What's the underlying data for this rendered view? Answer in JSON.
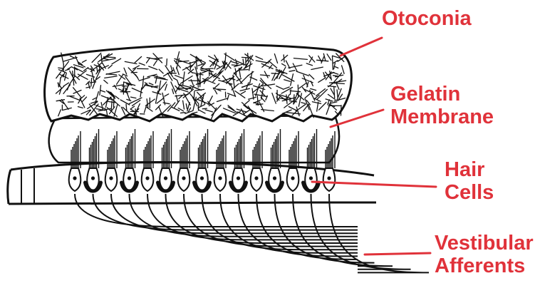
{
  "labels": {
    "otoconia": "Otoconia",
    "gelatin_membrane": [
      "Gelatin",
      "Membrane"
    ],
    "hair_cells": [
      "Hair",
      "Cells"
    ],
    "vestibular_afferents": [
      "Vestibular",
      "Afferents"
    ]
  },
  "colors": {
    "label": "#e0323a",
    "ink": "#111111",
    "background": "#ffffff"
  },
  "hair_cell_count": 15
}
